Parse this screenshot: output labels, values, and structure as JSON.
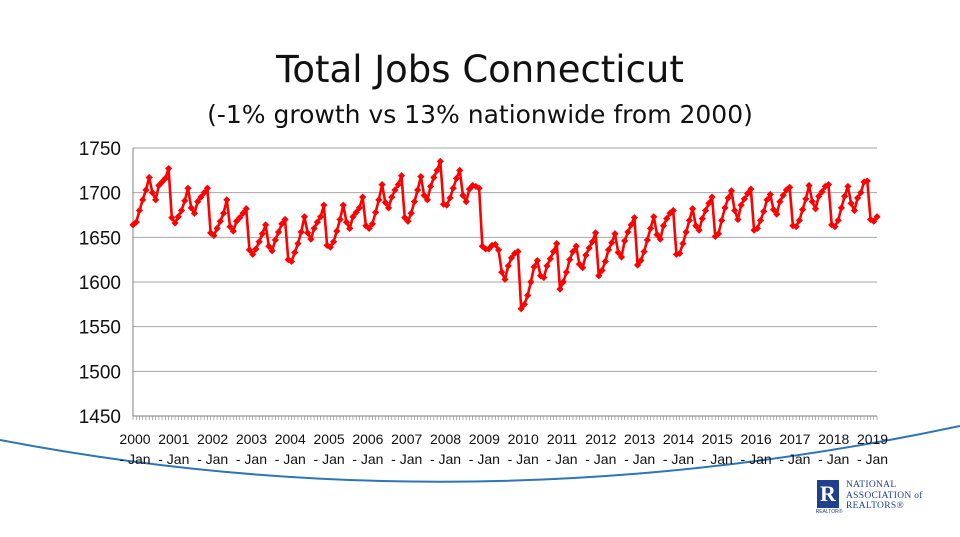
{
  "colors": {
    "series": "#ff0000",
    "arc": "#2e75b6",
    "axis": "#808080",
    "grid": "#a6a6a6",
    "logo": "#1f3f8f"
  },
  "logo": {
    "mark": "R",
    "sub": "REALTOR®",
    "lines": [
      "NATIONAL",
      "ASSOCIATION of",
      "REALTORS®"
    ]
  },
  "chart_data": {
    "type": "line",
    "title": "Total Jobs Connecticut",
    "subtitle": "(-1%  growth vs 13% nationwide from 2000)",
    "xlabel": "",
    "ylabel": "",
    "ylim": [
      1450,
      1750
    ],
    "yticks": [
      1450,
      1500,
      1550,
      1600,
      1650,
      1700,
      1750
    ],
    "grid": true,
    "legend": "none",
    "marker": "diamond",
    "tick_labels": [
      [
        "2000",
        "- Jan"
      ],
      [
        "2001",
        "- Jan"
      ],
      [
        "2002",
        "- Jan"
      ],
      [
        "2003",
        "- Jan"
      ],
      [
        "2004",
        "- Jan"
      ],
      [
        "2005",
        "- Jan"
      ],
      [
        "2006",
        "- Jan"
      ],
      [
        "2007",
        "- Jan"
      ],
      [
        "2008",
        "- Jan"
      ],
      [
        "2009",
        "- Jan"
      ],
      [
        "2010",
        "- Jan"
      ],
      [
        "2011",
        "- Jan"
      ],
      [
        "2012",
        "- Jan"
      ],
      [
        "2013",
        "- Jan"
      ],
      [
        "2014",
        "- Jan"
      ],
      [
        "2015",
        "- Jan"
      ],
      [
        "2016",
        "- Jan"
      ],
      [
        "2017",
        "- Jan"
      ],
      [
        "2018",
        "- Jan"
      ],
      [
        "2019",
        "- Jan"
      ]
    ],
    "x_start": "2000-01",
    "frequency": "monthly",
    "years": [
      {
        "year": 2000,
        "values": [
          1664,
          1667,
          1680,
          1692,
          1703,
          1717,
          1700,
          1692,
          1708,
          1712,
          1716,
          1727
        ]
      },
      {
        "year": 2001,
        "values": [
          1672,
          1666,
          1673,
          1680,
          1691,
          1705,
          1683,
          1677,
          1690,
          1695,
          1700,
          1705
        ]
      },
      {
        "year": 2002,
        "values": [
          1655,
          1652,
          1660,
          1668,
          1677,
          1692,
          1662,
          1657,
          1668,
          1672,
          1677,
          1682
        ]
      },
      {
        "year": 2003,
        "values": [
          1636,
          1631,
          1637,
          1645,
          1654,
          1664,
          1640,
          1635,
          1647,
          1656,
          1665,
          1670
        ]
      },
      {
        "year": 2004,
        "values": [
          1625,
          1623,
          1633,
          1643,
          1656,
          1673,
          1655,
          1648,
          1660,
          1667,
          1673,
          1686
        ]
      },
      {
        "year": 2005,
        "values": [
          1641,
          1639,
          1645,
          1657,
          1670,
          1686,
          1667,
          1660,
          1673,
          1678,
          1683,
          1695
        ]
      },
      {
        "year": 2006,
        "values": [
          1663,
          1660,
          1665,
          1678,
          1692,
          1709,
          1689,
          1683,
          1695,
          1703,
          1709,
          1719
        ]
      },
      {
        "year": 2007,
        "values": [
          1672,
          1668,
          1677,
          1690,
          1703,
          1718,
          1697,
          1692,
          1707,
          1717,
          1725,
          1735
        ]
      },
      {
        "year": 2008,
        "values": [
          1687,
          1686,
          1694,
          1705,
          1716,
          1725,
          1697,
          1690,
          1704,
          1708,
          1707,
          1705
        ]
      },
      {
        "year": 2009,
        "values": [
          1640,
          1637,
          1637,
          1641,
          1642,
          1636,
          1611,
          1603,
          1618,
          1627,
          1632,
          1634
        ]
      },
      {
        "year": 2010,
        "values": [
          1570,
          1575,
          1585,
          1600,
          1617,
          1624,
          1607,
          1605,
          1618,
          1626,
          1634,
          1643
        ]
      },
      {
        "year": 2011,
        "values": [
          1592,
          1600,
          1611,
          1625,
          1634,
          1640,
          1620,
          1616,
          1630,
          1638,
          1645,
          1655
        ]
      },
      {
        "year": 2012,
        "values": [
          1607,
          1613,
          1623,
          1636,
          1644,
          1654,
          1633,
          1628,
          1646,
          1656,
          1664,
          1672
        ]
      },
      {
        "year": 2013,
        "values": [
          1619,
          1624,
          1634,
          1647,
          1660,
          1673,
          1653,
          1648,
          1663,
          1671,
          1677,
          1680
        ]
      },
      {
        "year": 2014,
        "values": [
          1631,
          1632,
          1643,
          1656,
          1669,
          1682,
          1663,
          1658,
          1671,
          1680,
          1688,
          1695
        ]
      },
      {
        "year": 2015,
        "values": [
          1651,
          1654,
          1669,
          1683,
          1694,
          1702,
          1680,
          1670,
          1686,
          1693,
          1699,
          1704
        ]
      },
      {
        "year": 2016,
        "values": [
          1658,
          1660,
          1669,
          1679,
          1692,
          1698,
          1681,
          1676,
          1690,
          1697,
          1703,
          1706
        ]
      },
      {
        "year": 2017,
        "values": [
          1663,
          1662,
          1669,
          1681,
          1693,
          1708,
          1690,
          1682,
          1696,
          1701,
          1707,
          1709
        ]
      },
      {
        "year": 2018,
        "values": [
          1664,
          1662,
          1669,
          1683,
          1696,
          1707,
          1688,
          1680,
          1694,
          1700,
          1712,
          1713
        ]
      },
      {
        "year": 2019,
        "values": [
          1670,
          1668,
          1673
        ]
      }
    ]
  }
}
